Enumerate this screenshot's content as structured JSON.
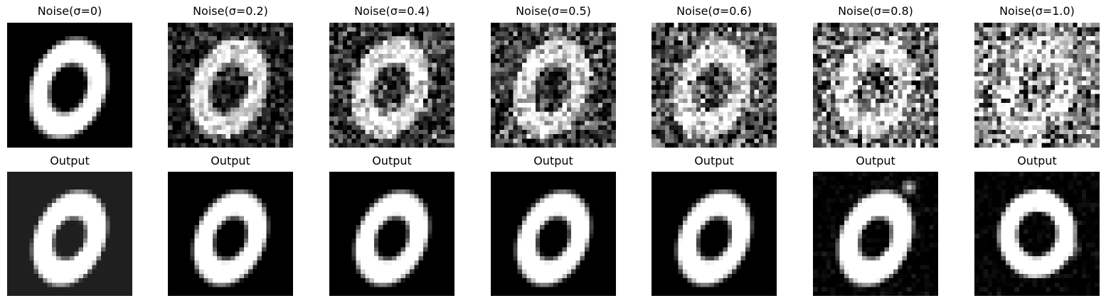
{
  "figure": {
    "rows": [
      {
        "row": "noisy-input",
        "panels": [
          {
            "title": "Noise(σ=0)",
            "sigma": 0
          },
          {
            "title": "Noise(σ=0.2)",
            "sigma": 0.2
          },
          {
            "title": "Noise(σ=0.4)",
            "sigma": 0.4
          },
          {
            "title": "Noise(σ=0.5)",
            "sigma": 0.5
          },
          {
            "title": "Noise(σ=0.6)",
            "sigma": 0.6
          },
          {
            "title": "Noise(σ=0.8)",
            "sigma": 0.8
          },
          {
            "title": "Noise(σ=1.0)",
            "sigma": 1.0
          }
        ]
      },
      {
        "row": "denoised-output",
        "panels": [
          {
            "title": "Output",
            "sigma": 0
          },
          {
            "title": "Output",
            "sigma": 0.2
          },
          {
            "title": "Output",
            "sigma": 0.4
          },
          {
            "title": "Output",
            "sigma": 0.5
          },
          {
            "title": "Output",
            "sigma": 0.6
          },
          {
            "title": "Output",
            "sigma": 0.8
          },
          {
            "title": "Output",
            "sigma": 1.0
          }
        ]
      }
    ]
  }
}
